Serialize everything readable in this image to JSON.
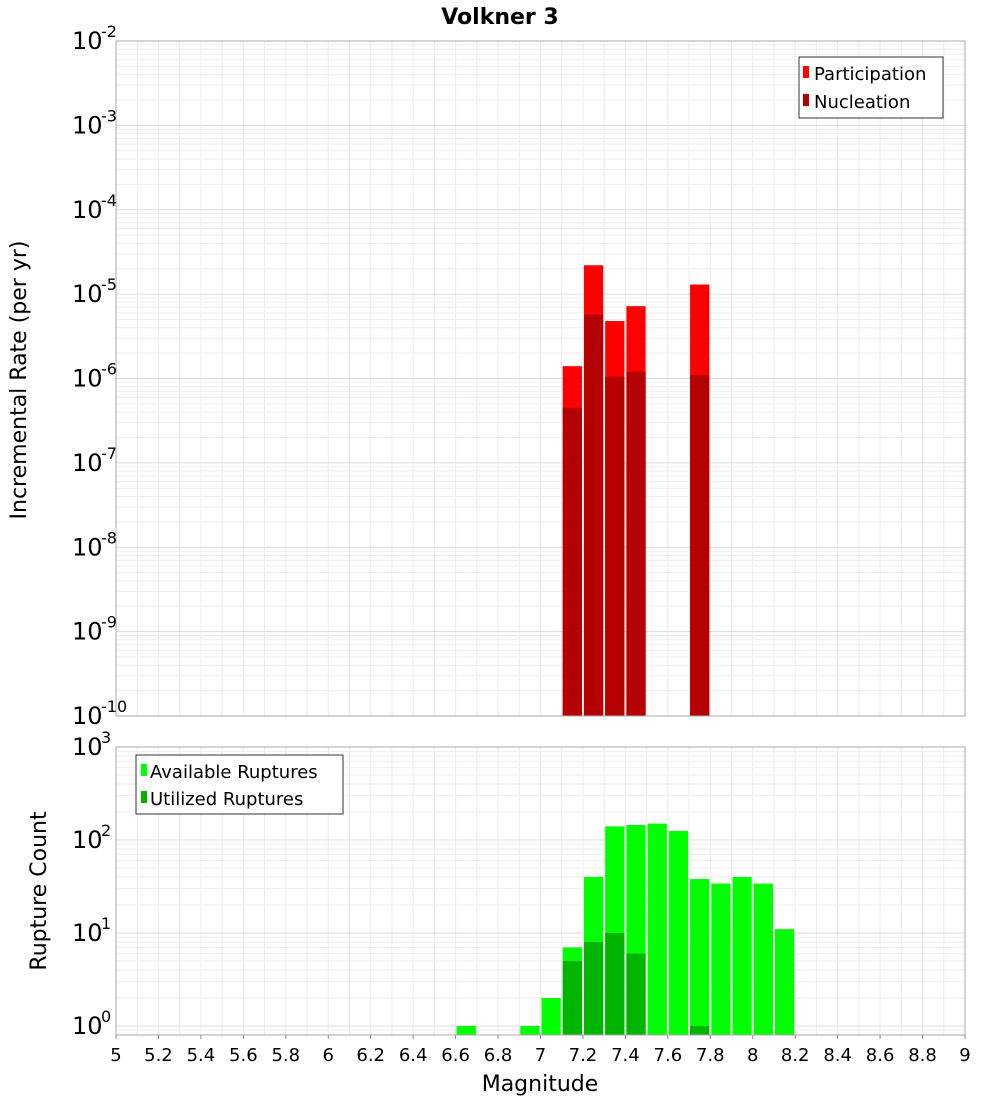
{
  "chart_data": [
    {
      "type": "bar",
      "title": "Volkner 3",
      "ylabel": "Incremental Rate (per yr)",
      "xlabel": "",
      "yscale": "log",
      "ylim": [
        1e-10,
        0.01
      ],
      "xlim": [
        5,
        9
      ],
      "bar_width": 0.1,
      "y_ticks": [
        {
          "base": "10",
          "exp": "-10"
        },
        {
          "base": "10",
          "exp": "-9"
        },
        {
          "base": "10",
          "exp": "-8"
        },
        {
          "base": "10",
          "exp": "-7"
        },
        {
          "base": "10",
          "exp": "-6"
        },
        {
          "base": "10",
          "exp": "-5"
        },
        {
          "base": "10",
          "exp": "-4"
        },
        {
          "base": "10",
          "exp": "-3"
        },
        {
          "base": "10",
          "exp": "-2"
        }
      ],
      "legend": {
        "position": "top-right"
      },
      "series": [
        {
          "name": "Participation",
          "color": "#ff0000",
          "x": [
            7.15,
            7.25,
            7.35,
            7.45,
            7.75
          ],
          "values": [
            1.4e-06,
            2.2e-05,
            4.8e-06,
            7.2e-06,
            1.3e-05
          ]
        },
        {
          "name": "Nucleation",
          "color": "#b40000",
          "x": [
            7.15,
            7.25,
            7.35,
            7.45,
            7.75
          ],
          "values": [
            4.5e-07,
            5.7e-06,
            1.05e-06,
            1.2e-06,
            1.1e-06
          ]
        }
      ]
    },
    {
      "type": "bar",
      "title": "",
      "ylabel": "Rupture Count",
      "xlabel": "Magnitude",
      "yscale": "log",
      "ylim": [
        0.8,
        1000
      ],
      "xlim": [
        5,
        9
      ],
      "bar_width": 0.1,
      "x_ticks": [
        "5",
        "5.2",
        "5.4",
        "5.6",
        "5.8",
        "6",
        "6.2",
        "6.4",
        "6.6",
        "6.8",
        "7",
        "7.2",
        "7.4",
        "7.6",
        "7.8",
        "8",
        "8.2",
        "8.4",
        "8.6",
        "8.8",
        "9"
      ],
      "y_ticks": [
        {
          "base": "10",
          "exp": "0"
        },
        {
          "base": "10",
          "exp": "1"
        },
        {
          "base": "10",
          "exp": "2"
        },
        {
          "base": "10",
          "exp": "3"
        }
      ],
      "legend": {
        "position": "top-left"
      },
      "series": [
        {
          "name": "Available Ruptures",
          "color": "#00ff00",
          "x": [
            6.65,
            6.95,
            7.05,
            7.15,
            7.25,
            7.35,
            7.45,
            7.55,
            7.65,
            7.75,
            7.85,
            7.95,
            8.05,
            8.15
          ],
          "values": [
            1,
            1,
            2,
            7,
            40,
            140,
            145,
            150,
            125,
            38,
            34,
            40,
            34,
            11
          ]
        },
        {
          "name": "Utilized Ruptures",
          "color": "#00b400",
          "x": [
            7.15,
            7.25,
            7.35,
            7.45,
            7.75
          ],
          "values": [
            5,
            8,
            10,
            6,
            1
          ]
        }
      ]
    }
  ]
}
